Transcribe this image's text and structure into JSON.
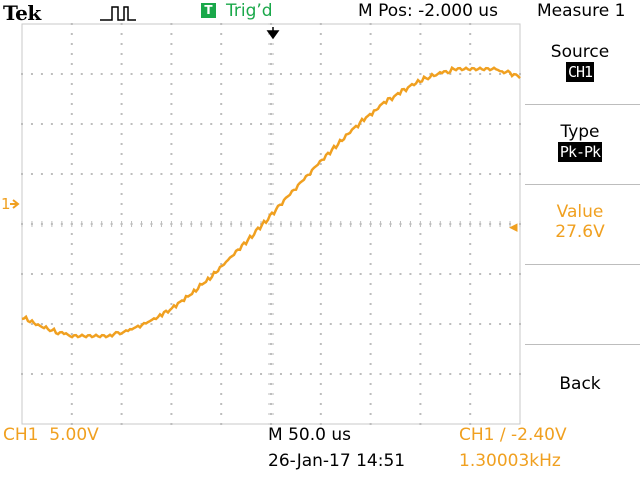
{
  "header": {
    "logo": "Tek",
    "trigger_badge": "T",
    "trigger_status": "Trig’d",
    "m_pos": "M Pos: -2.000 us",
    "menu_title": "Measure 1"
  },
  "menu": {
    "source_label": "Source",
    "source_value": "CH1",
    "type_label": "Type",
    "type_value": "Pk-Pk",
    "value_label": "Value",
    "value_reading": "27.6V",
    "back_label": "Back"
  },
  "markers": {
    "channel_marker": "1",
    "trigger_level_marker": "◂"
  },
  "footer": {
    "ch1_scale": "CH1  5.00V",
    "timebase": "M 50.0 us",
    "trigger_setting": "CH1 ∕ -2.40V",
    "date_time": "26-Jan-17 14:51",
    "frequency": "1.30003kHz"
  },
  "colors": {
    "trace": "#f0a020",
    "trigger_green": "#1aa84a",
    "grid": "#bdbdbd"
  },
  "icons": {
    "trigger_pulse": "pulse-icon",
    "trigger_position": "down-arrow-icon"
  }
}
